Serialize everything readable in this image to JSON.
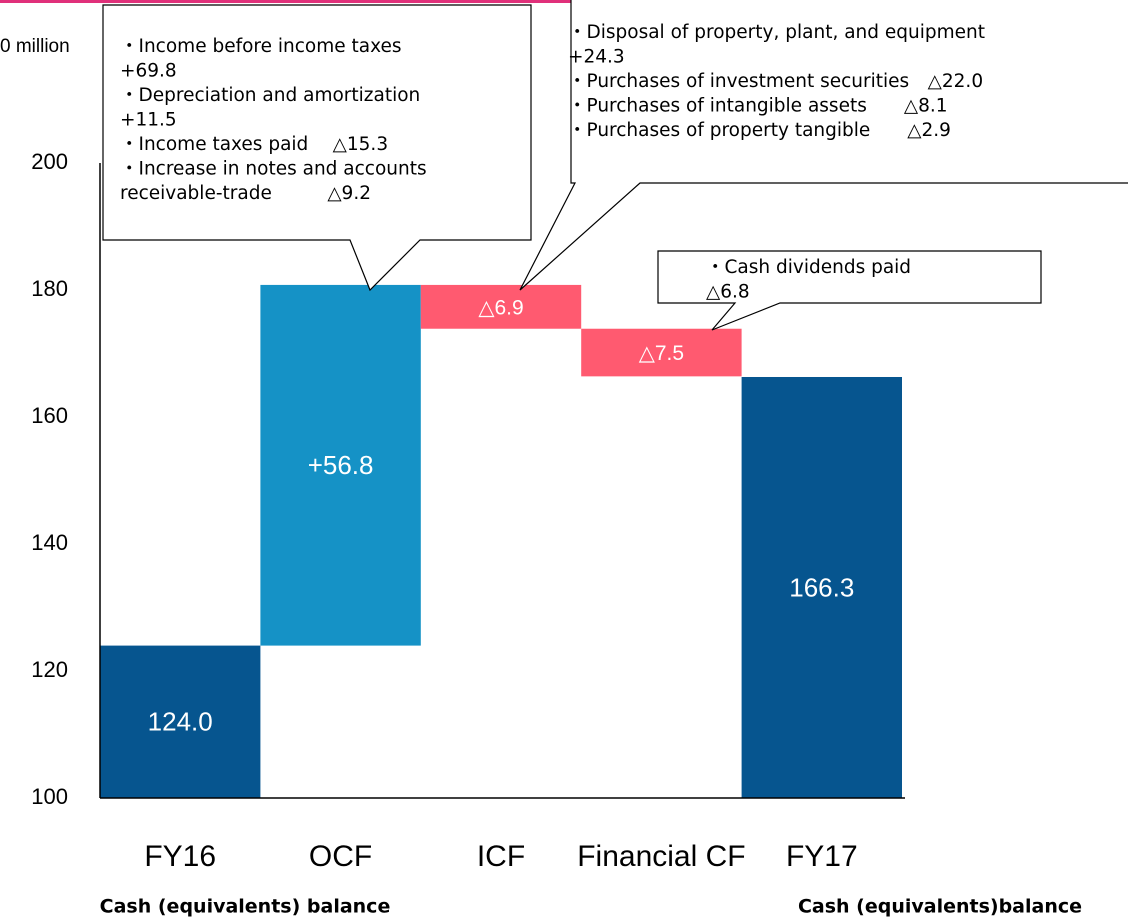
{
  "chart_data": {
    "type": "waterfall",
    "y_label": "0 million",
    "categories": [
      "FY16",
      "OCF",
      "ICF",
      "Financial CF",
      "FY17"
    ],
    "values": [
      124.0,
      56.8,
      -6.9,
      -7.5,
      166.3
    ],
    "value_labels": [
      "124.0",
      "+56.8",
      "△6.9",
      "△7.5",
      "166.3"
    ],
    "measure": [
      "total",
      "relative",
      "relative",
      "relative",
      "total"
    ],
    "colors": [
      "#06558f",
      "#1592c6",
      "#ff5a70",
      "#ff5a70",
      "#06558f"
    ],
    "ylim": [
      100,
      200
    ],
    "yticks": [
      100,
      120,
      140,
      160,
      180,
      200
    ],
    "sublabels": [
      "Cash (equivalents) balance",
      "Cash (equivalents)balance"
    ],
    "annotations": [
      [
        "・Income before income taxes",
        "+69.8",
        "・Depreciation and amortization",
        "+11.5",
        "・Income taxes paid　 △15.3",
        "・Increase in notes and accounts",
        "receivable-trade　　　△9.2"
      ],
      [
        "・Disposal of property, plant, and equipment",
        "+24.3",
        "・Purchases of investment securities　△22.0",
        "・Purchases of intangible assets　　△8.1",
        "・Purchases of property tangible　　△2.9"
      ],
      [
        "・Cash dividends paid",
        "△6.8"
      ]
    ]
  }
}
